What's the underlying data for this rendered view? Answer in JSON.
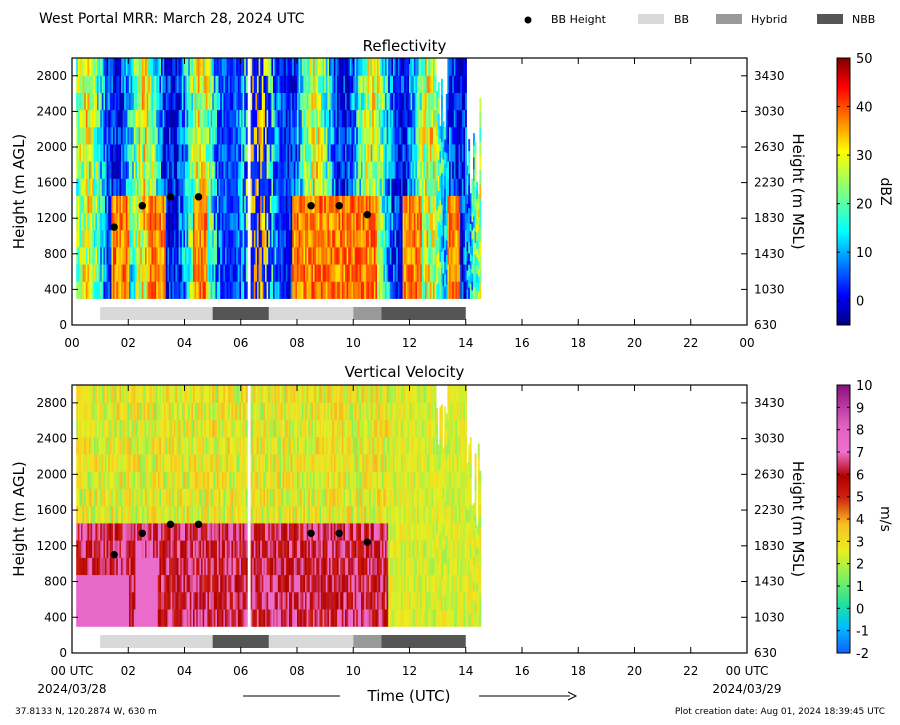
{
  "header": {
    "title": "West Portal MRR:  March 28, 2024 UTC",
    "legend": [
      {
        "label": "BB Height",
        "kind": "dot",
        "color": "#000000"
      },
      {
        "label": "BB",
        "kind": "box",
        "color": "#d9d9d9"
      },
      {
        "label": "Hybrid",
        "kind": "box",
        "color": "#999999"
      },
      {
        "label": "NBB",
        "kind": "box",
        "color": "#555555"
      }
    ]
  },
  "chart_data": [
    {
      "type": "heatmap",
      "title": "Reflectivity",
      "ylabel": "Height (m AGL)",
      "y2label": "Height (m MSL)",
      "xlim": [
        0,
        24
      ],
      "ylim": [
        0,
        3000
      ],
      "x_ticks": [
        "00",
        "02",
        "04",
        "06",
        "08",
        "10",
        "12",
        "14",
        "16",
        "18",
        "20",
        "22",
        "00"
      ],
      "y_ticks": [
        0,
        400,
        800,
        1200,
        1600,
        2000,
        2400,
        2800
      ],
      "y2_ticks": [
        "630",
        "1030",
        "1430",
        "1830",
        "2230",
        "2630",
        "3030",
        "3430"
      ],
      "colorbar": {
        "label": "dBZ",
        "min": -5,
        "max": 50,
        "ticks": [
          0,
          10,
          20,
          30,
          40,
          50
        ],
        "colormap": "jet"
      },
      "bb_height": [
        {
          "x": 1.5,
          "y": 1100
        },
        {
          "x": 2.5,
          "y": 1340
        },
        {
          "x": 3.5,
          "y": 1440
        },
        {
          "x": 4.5,
          "y": 1440
        },
        {
          "x": 8.5,
          "y": 1340
        },
        {
          "x": 9.5,
          "y": 1340
        },
        {
          "x": 10.5,
          "y": 1240
        }
      ],
      "bb_type_segments": [
        {
          "start": 1,
          "end": 5,
          "type": "BB"
        },
        {
          "start": 5,
          "end": 7,
          "type": "NBB"
        },
        {
          "start": 7,
          "end": 10,
          "type": "BB"
        },
        {
          "start": 10,
          "end": 11,
          "type": "Hybrid"
        },
        {
          "start": 11,
          "end": 14,
          "type": "NBB"
        }
      ]
    },
    {
      "type": "heatmap",
      "title": "Vertical Velocity",
      "ylabel": "Height (m AGL)",
      "y2label": "Height (m MSL)",
      "xlim": [
        0,
        24
      ],
      "ylim": [
        0,
        3000
      ],
      "x_ticks": [
        "00 UTC",
        "02",
        "04",
        "06",
        "08",
        "10",
        "12",
        "14",
        "16",
        "18",
        "20",
        "22",
        "00 UTC"
      ],
      "y_ticks": [
        0,
        400,
        800,
        1200,
        1600,
        2000,
        2400,
        2800
      ],
      "y2_ticks": [
        "630",
        "1030",
        "1430",
        "1830",
        "2230",
        "2630",
        "3030",
        "3430"
      ],
      "colorbar": {
        "label": "m/s",
        "min": -2,
        "max": 10,
        "ticks": [
          -2,
          -1,
          0,
          1,
          2,
          3,
          4,
          5,
          6,
          7,
          8,
          9,
          10
        ]
      },
      "bb_height": [
        {
          "x": 1.5,
          "y": 1100
        },
        {
          "x": 2.5,
          "y": 1340
        },
        {
          "x": 3.5,
          "y": 1440
        },
        {
          "x": 4.5,
          "y": 1440
        },
        {
          "x": 8.5,
          "y": 1340
        },
        {
          "x": 9.5,
          "y": 1340
        },
        {
          "x": 10.5,
          "y": 1240
        }
      ],
      "bb_type_segments": [
        {
          "start": 1,
          "end": 5,
          "type": "BB"
        },
        {
          "start": 5,
          "end": 7,
          "type": "NBB"
        },
        {
          "start": 7,
          "end": 10,
          "type": "BB"
        },
        {
          "start": 10,
          "end": 11,
          "type": "Hybrid"
        },
        {
          "start": 11,
          "end": 14,
          "type": "NBB"
        }
      ]
    }
  ],
  "footer": {
    "date_left": "2024/03/28",
    "date_right": "2024/03/29",
    "xlabel": "Time (UTC)",
    "location": "37.8133 N, 120.2874 W, 630 m",
    "created": "Plot creation date: Aug 01, 2024 18:39:45 UTC"
  }
}
